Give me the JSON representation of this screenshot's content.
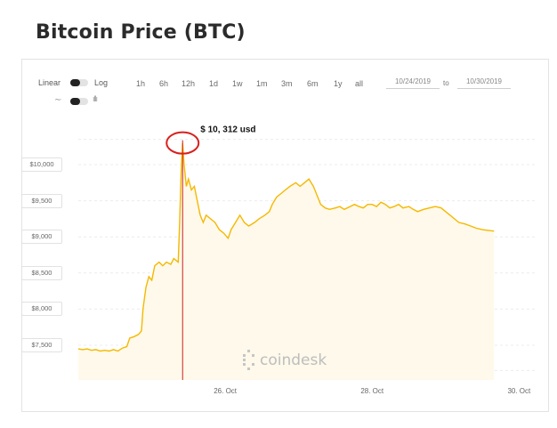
{
  "header": {
    "title": "Bitcoin Price (BTC)"
  },
  "controls": {
    "linear_label": "Linear",
    "log_label": "Log",
    "timeframes": [
      "1h",
      "6h",
      "12h",
      "1d",
      "1w",
      "1m",
      "3m",
      "6m",
      "1y",
      "all"
    ],
    "date_from": "10/24/2019",
    "to_label": "to",
    "date_to": "10/30/2019"
  },
  "watermark": "coindesk",
  "chart_data": {
    "type": "area",
    "ylim": [
      7000,
      10500
    ],
    "y_ticks": [
      {
        "value": 10000,
        "label": "$10,000"
      },
      {
        "value": 9500,
        "label": "$9,500"
      },
      {
        "value": 9000,
        "label": "$9,000"
      },
      {
        "value": 8500,
        "label": "$8,500"
      },
      {
        "value": 8000,
        "label": "$8,000"
      },
      {
        "value": 7500,
        "label": "$7,500"
      }
    ],
    "x_ticks": [
      {
        "x": 2.0,
        "label": "26. Oct"
      },
      {
        "x": 4.0,
        "label": "28. Oct"
      },
      {
        "x": 6.0,
        "label": "30. Oct"
      }
    ],
    "x_day_of_first_tick": "26. Oct",
    "line_color": "#f5b800",
    "fill_color": "#fef9ea",
    "series": [
      {
        "points": [
          [
            0.0,
            7450
          ],
          [
            0.06,
            7440
          ],
          [
            0.12,
            7450
          ],
          [
            0.18,
            7430
          ],
          [
            0.24,
            7440
          ],
          [
            0.3,
            7420
          ],
          [
            0.36,
            7430
          ],
          [
            0.42,
            7420
          ],
          [
            0.48,
            7440
          ],
          [
            0.54,
            7420
          ],
          [
            0.6,
            7460
          ],
          [
            0.66,
            7480
          ],
          [
            0.7,
            7600
          ],
          [
            0.76,
            7620
          ],
          [
            0.82,
            7650
          ],
          [
            0.86,
            7700
          ],
          [
            0.88,
            8000
          ],
          [
            0.92,
            8300
          ],
          [
            0.96,
            8450
          ],
          [
            1.0,
            8400
          ],
          [
            1.04,
            8600
          ],
          [
            1.1,
            8650
          ],
          [
            1.15,
            8600
          ],
          [
            1.2,
            8650
          ],
          [
            1.26,
            8620
          ],
          [
            1.3,
            8700
          ],
          [
            1.36,
            8650
          ],
          [
            1.38,
            9200
          ],
          [
            1.4,
            9900
          ],
          [
            1.42,
            10300
          ],
          [
            1.44,
            10000
          ],
          [
            1.47,
            9700
          ],
          [
            1.5,
            9800
          ],
          [
            1.54,
            9650
          ],
          [
            1.58,
            9700
          ],
          [
            1.62,
            9500
          ],
          [
            1.66,
            9300
          ],
          [
            1.7,
            9200
          ],
          [
            1.74,
            9300
          ],
          [
            1.8,
            9250
          ],
          [
            1.86,
            9200
          ],
          [
            1.92,
            9100
          ],
          [
            1.98,
            9050
          ],
          [
            2.04,
            8980
          ],
          [
            2.08,
            9100
          ],
          [
            2.14,
            9200
          ],
          [
            2.2,
            9300
          ],
          [
            2.26,
            9200
          ],
          [
            2.32,
            9150
          ],
          [
            2.4,
            9200
          ],
          [
            2.46,
            9250
          ],
          [
            2.54,
            9300
          ],
          [
            2.6,
            9350
          ],
          [
            2.64,
            9450
          ],
          [
            2.7,
            9550
          ],
          [
            2.76,
            9600
          ],
          [
            2.82,
            9650
          ],
          [
            2.88,
            9700
          ],
          [
            2.96,
            9750
          ],
          [
            3.02,
            9700
          ],
          [
            3.08,
            9750
          ],
          [
            3.14,
            9800
          ],
          [
            3.2,
            9700
          ],
          [
            3.24,
            9600
          ],
          [
            3.3,
            9450
          ],
          [
            3.36,
            9400
          ],
          [
            3.42,
            9380
          ],
          [
            3.5,
            9400
          ],
          [
            3.56,
            9420
          ],
          [
            3.62,
            9380
          ],
          [
            3.7,
            9420
          ],
          [
            3.76,
            9450
          ],
          [
            3.82,
            9420
          ],
          [
            3.88,
            9400
          ],
          [
            3.94,
            9450
          ],
          [
            4.0,
            9450
          ],
          [
            4.06,
            9420
          ],
          [
            4.12,
            9480
          ],
          [
            4.18,
            9450
          ],
          [
            4.24,
            9400
          ],
          [
            4.3,
            9420
          ],
          [
            4.36,
            9450
          ],
          [
            4.42,
            9400
          ],
          [
            4.5,
            9420
          ],
          [
            4.56,
            9380
          ],
          [
            4.62,
            9350
          ],
          [
            4.7,
            9380
          ],
          [
            4.78,
            9400
          ],
          [
            4.86,
            9420
          ],
          [
            4.94,
            9400
          ],
          [
            5.0,
            9350
          ],
          [
            5.06,
            9300
          ],
          [
            5.12,
            9250
          ],
          [
            5.18,
            9200
          ],
          [
            5.26,
            9180
          ],
          [
            5.34,
            9150
          ],
          [
            5.42,
            9120
          ],
          [
            5.5,
            9100
          ],
          [
            5.58,
            9090
          ],
          [
            5.66,
            9080
          ]
        ]
      }
    ],
    "annotation": {
      "x": 1.42,
      "value": 10300,
      "label": "$ 10, 312 usd"
    }
  }
}
